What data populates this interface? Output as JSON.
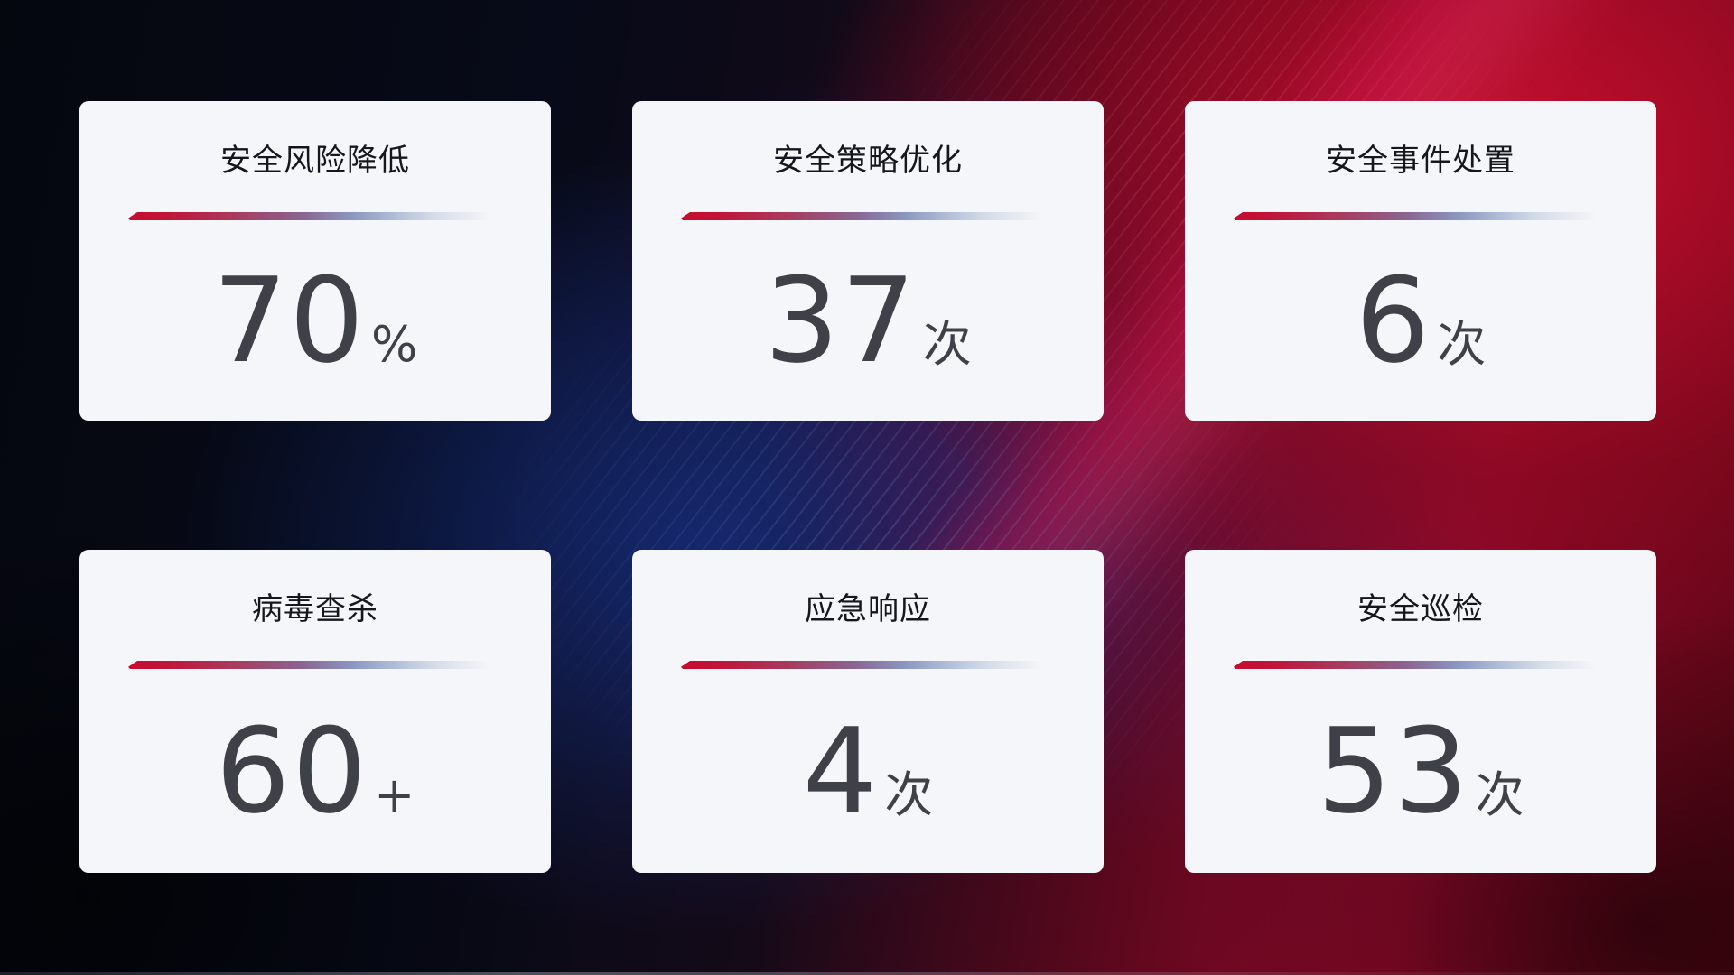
{
  "page": {
    "type": "security-operations-kpi-dashboard",
    "colors": {
      "accent_red": "#c60c2f",
      "divider_blue": "#8b97c1",
      "card_background": "#f5f6f9",
      "title_text": "#14171d",
      "value_text": "#3e4248",
      "background_dark_navy": "#070a18",
      "background_red": "#90092a",
      "background_blue_glow": "#193aa0"
    }
  },
  "cards": [
    {
      "title": "安全风险降低",
      "value": "70",
      "unit": "%"
    },
    {
      "title": "安全策略优化",
      "value": "37",
      "unit": "次"
    },
    {
      "title": "安全事件处置",
      "value": "6",
      "unit": "次"
    },
    {
      "title": "病毒查杀",
      "value": "60",
      "unit": "+"
    },
    {
      "title": "应急响应",
      "value": "4",
      "unit": "次"
    },
    {
      "title": "安全巡检",
      "value": "53",
      "unit": "次"
    }
  ]
}
